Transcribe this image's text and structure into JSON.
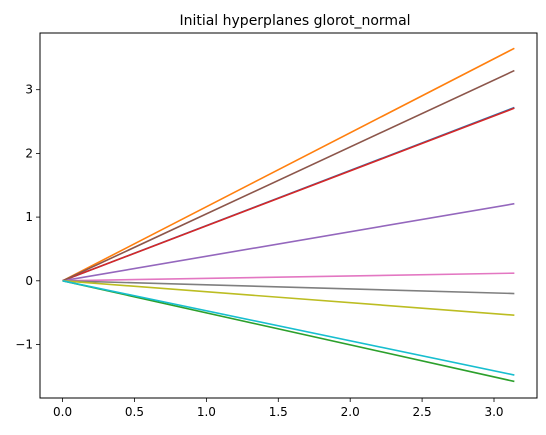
{
  "chart_data": {
    "type": "line",
    "title": "Initial hyperplanes glorot_normal",
    "xlabel": "",
    "ylabel": "",
    "xlim": [
      -0.157,
      3.299
    ],
    "ylim": [
      -1.84,
      3.89
    ],
    "grid": false,
    "legend": "none",
    "x_ticks": [
      0.0,
      0.5,
      1.0,
      1.5,
      2.0,
      2.5,
      3.0
    ],
    "x_tick_labels": [
      "0.0",
      "0.5",
      "1.0",
      "1.5",
      "2.0",
      "2.5",
      "3.0"
    ],
    "y_ticks": [
      -1,
      0,
      1,
      2,
      3
    ],
    "y_tick_labels": [
      "−1",
      "0",
      "1",
      "2",
      "3"
    ],
    "series": [
      {
        "color": "#1f77b4",
        "x": [
          0,
          3.1416
        ],
        "y": [
          0,
          2.72
        ]
      },
      {
        "color": "#ff7f0e",
        "x": [
          0,
          3.1416
        ],
        "y": [
          0,
          3.65
        ]
      },
      {
        "color": "#2ca02c",
        "x": [
          0,
          3.1416
        ],
        "y": [
          0,
          -1.58
        ]
      },
      {
        "color": "#d62728",
        "x": [
          0,
          3.1416
        ],
        "y": [
          0,
          2.71
        ]
      },
      {
        "color": "#9467bd",
        "x": [
          0,
          3.1416
        ],
        "y": [
          0,
          1.21
        ]
      },
      {
        "color": "#8c564b",
        "x": [
          0,
          3.1416
        ],
        "y": [
          0,
          3.3
        ]
      },
      {
        "color": "#e377c2",
        "x": [
          0,
          3.1416
        ],
        "y": [
          0,
          0.12
        ]
      },
      {
        "color": "#7f7f7f",
        "x": [
          0,
          3.1416
        ],
        "y": [
          0,
          -0.2
        ]
      },
      {
        "color": "#bcbd22",
        "x": [
          0,
          3.1416
        ],
        "y": [
          0,
          -0.54
        ]
      },
      {
        "color": "#17becf",
        "x": [
          0,
          3.1416
        ],
        "y": [
          0,
          -1.48
        ]
      }
    ]
  }
}
